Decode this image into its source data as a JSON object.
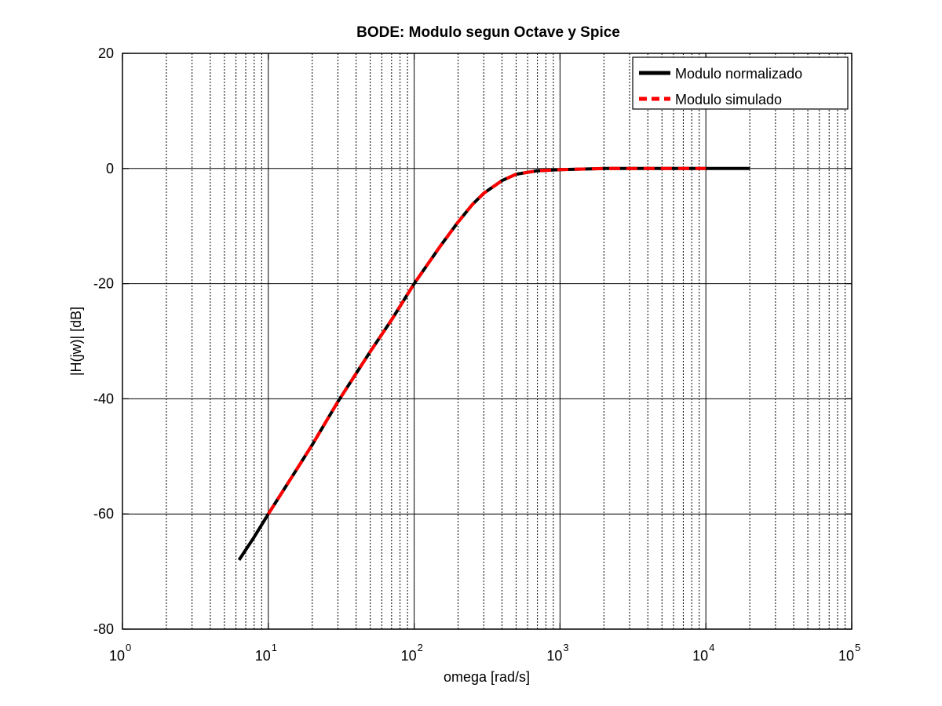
{
  "chart_data": {
    "type": "line",
    "title": "BODE: Modulo segun Octave y Spice",
    "xlabel": "omega [rad/s]",
    "ylabel": "|H(jw)| [dB]",
    "xscale": "log",
    "xlim": [
      1,
      100000
    ],
    "ylim": [
      -80,
      20
    ],
    "xticks": [
      {
        "base": "10",
        "exp": "0"
      },
      {
        "base": "10",
        "exp": "1"
      },
      {
        "base": "10",
        "exp": "2"
      },
      {
        "base": "10",
        "exp": "3"
      },
      {
        "base": "10",
        "exp": "4"
      },
      {
        "base": "10",
        "exp": "5"
      }
    ],
    "yticks": [
      "20",
      "0",
      "-20",
      "-40",
      "-60",
      "-80"
    ],
    "grid": true,
    "legend_position": "top-right",
    "series": [
      {
        "name": "Modulo normalizado",
        "color": "#000000",
        "style": "solid",
        "x": [
          6.3,
          8,
          10,
          15,
          20,
          30,
          50,
          70,
          100,
          150,
          200,
          250,
          300,
          400,
          500,
          700,
          1000,
          2000,
          5000,
          10000,
          20000
        ],
        "y": [
          -68,
          -64,
          -60,
          -53,
          -48,
          -40.5,
          -31.8,
          -26.3,
          -20,
          -13.6,
          -9.3,
          -6.3,
          -4.3,
          -2.1,
          -1.0,
          -0.4,
          -0.2,
          0,
          0,
          0,
          0
        ]
      },
      {
        "name": "Modulo simulado",
        "color": "#ff0000",
        "style": "dashed",
        "x": [
          10,
          15,
          20,
          30,
          50,
          70,
          100,
          150,
          200,
          250,
          300,
          400,
          500,
          700,
          1000,
          2000,
          5000,
          10000
        ],
        "y": [
          -60,
          -53,
          -48,
          -40.5,
          -31.8,
          -26.3,
          -20,
          -13.6,
          -9.3,
          -6.3,
          -4.3,
          -2.1,
          -1.0,
          -0.4,
          -0.2,
          0,
          0,
          0
        ]
      }
    ]
  }
}
